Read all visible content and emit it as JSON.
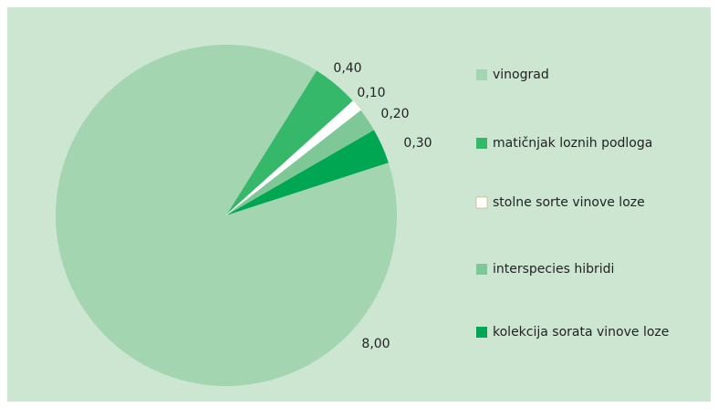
{
  "chart_data": {
    "type": "pie",
    "categories": [
      "vinograd",
      "matičnjak loznih podloga",
      "stolne sorte vinove loze",
      "interspecies hibridi",
      "kolekcija sorata vinove loze"
    ],
    "values": [
      8.0,
      0.4,
      0.1,
      0.2,
      0.3
    ],
    "value_labels": [
      "8,00",
      "0,40",
      "0,10",
      "0,20",
      "0,30"
    ],
    "colors": [
      "#a3d5b0",
      "#36b86a",
      "#ffffff",
      "#7ec898",
      "#00a651"
    ],
    "legend": "right"
  }
}
